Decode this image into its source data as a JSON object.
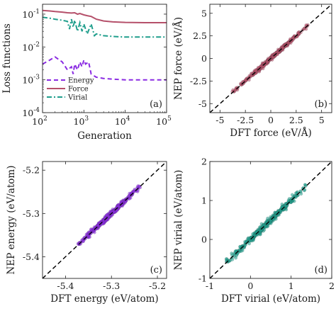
{
  "colors": {
    "energy": "#8a2be2",
    "force": "#b5506a",
    "virial": "#1f9e8c",
    "diagonal": "#000000"
  },
  "chart_data": [
    {
      "id": "a",
      "type": "line",
      "panel_label": "(a)",
      "xlabel": "Generation",
      "ylabel": "Loss functions",
      "xscale": "log",
      "yscale": "log",
      "xlim": [
        100,
        100000
      ],
      "ylim": [
        0.0001,
        0.2
      ],
      "xticks": [
        100,
        1000,
        10000,
        100000
      ],
      "xtick_labels": [
        {
          "base": "10",
          "exp": "2"
        },
        {
          "base": "10",
          "exp": "3"
        },
        {
          "base": "10",
          "exp": "4"
        },
        {
          "base": "10",
          "exp": "5"
        }
      ],
      "yticks": [
        0.0001,
        0.001,
        0.01,
        0.1
      ],
      "ytick_labels": [
        {
          "base": "10",
          "exp": "-4"
        },
        {
          "base": "10",
          "exp": "-3"
        },
        {
          "base": "10",
          "exp": "-2"
        },
        {
          "base": "10",
          "exp": "-1"
        }
      ],
      "legend_position": "lower-left",
      "series": [
        {
          "name": "Force",
          "color_key": "force",
          "dash": "solid",
          "x": [
            100,
            150,
            200,
            300,
            400,
            500,
            600,
            700,
            800,
            1000,
            1200,
            1500,
            2000,
            3000,
            5000,
            10000,
            30000,
            100000
          ],
          "y": [
            0.13,
            0.125,
            0.12,
            0.115,
            0.11,
            0.108,
            0.11,
            0.1,
            0.105,
            0.095,
            0.09,
            0.085,
            0.07,
            0.062,
            0.058,
            0.056,
            0.055,
            0.055
          ]
        },
        {
          "name": "Virial",
          "color_key": "virial",
          "dash": "dashdot",
          "x": [
            100,
            150,
            200,
            300,
            400,
            450,
            500,
            550,
            600,
            700,
            800,
            900,
            1000,
            1200,
            1500,
            1800,
            2000,
            3000,
            5000,
            10000,
            30000,
            100000
          ],
          "y": [
            0.08,
            0.075,
            0.07,
            0.065,
            0.06,
            0.035,
            0.07,
            0.04,
            0.065,
            0.03,
            0.055,
            0.03,
            0.05,
            0.025,
            0.05,
            0.022,
            0.025,
            0.022,
            0.021,
            0.02,
            0.02,
            0.02
          ]
        },
        {
          "name": "Energy",
          "color_key": "energy",
          "dash": "dashed",
          "x": [
            100,
            150,
            200,
            300,
            400,
            500,
            550,
            600,
            700,
            800,
            900,
            1000,
            1100,
            1300,
            1500,
            1800,
            2000,
            3000,
            5000,
            10000,
            30000,
            100000
          ],
          "y": [
            0.003,
            0.004,
            0.005,
            0.0035,
            0.002,
            0.0025,
            0.0015,
            0.003,
            0.002,
            0.0035,
            0.0025,
            0.004,
            0.003,
            0.0035,
            0.0015,
            0.0013,
            0.0012,
            0.0011,
            0.00105,
            0.001,
            0.001,
            0.001
          ]
        }
      ]
    },
    {
      "id": "b",
      "type": "scatter",
      "panel_label": "(b)",
      "xlabel": "DFT force (eV/Å)",
      "ylabel": "NEP force (eV/Å)",
      "xlim": [
        -6,
        6
      ],
      "ylim": [
        -6,
        6
      ],
      "xticks": [
        -5,
        -2.5,
        0,
        2.5,
        5
      ],
      "xtick_labels": [
        "-5",
        "-2.5",
        "0",
        "2.5",
        "5"
      ],
      "yticks": [
        -5,
        -2.5,
        0,
        2.5,
        5
      ],
      "ytick_labels": [
        "-5",
        "-2.5",
        "0",
        "2.5",
        "5"
      ],
      "series": [
        {
          "name": "",
          "color_key": "force",
          "range": [
            -3.6,
            3.6
          ],
          "spread": 0.15
        }
      ]
    },
    {
      "id": "c",
      "type": "scatter",
      "panel_label": "(c)",
      "xlabel": "DFT energy (eV/atom)",
      "ylabel": "NEP energy (eV/atom)",
      "xlim": [
        -5.45,
        -5.18
      ],
      "ylim": [
        -5.45,
        -5.18
      ],
      "xticks": [
        -5.4,
        -5.3,
        -5.2
      ],
      "xtick_labels": [
        "-5.4",
        "-5.3",
        "-5.2"
      ],
      "yticks": [
        -5.4,
        -5.3,
        -5.2
      ],
      "ytick_labels": [
        "-5.4",
        "-5.3",
        "-5.2"
      ],
      "series": [
        {
          "name": "",
          "color_key": "energy",
          "range": [
            -5.37,
            -5.24
          ],
          "spread": 0.004
        }
      ]
    },
    {
      "id": "d",
      "type": "scatter",
      "panel_label": "(d)",
      "xlabel": "DFT virial (eV/atom)",
      "ylabel": "NEP virial (eV/atom)",
      "xlim": [
        -1,
        2
      ],
      "ylim": [
        -1,
        2
      ],
      "xticks": [
        -1,
        0,
        1,
        2
      ],
      "xtick_labels": [
        "-1",
        "0",
        "1",
        "2"
      ],
      "yticks": [
        -1,
        0,
        1,
        2
      ],
      "ytick_labels": [
        "-1",
        "0",
        "1",
        "2"
      ],
      "series": [
        {
          "name": "",
          "color_key": "virial",
          "range": [
            -0.55,
            1.35
          ],
          "spread": 0.06
        }
      ]
    }
  ]
}
